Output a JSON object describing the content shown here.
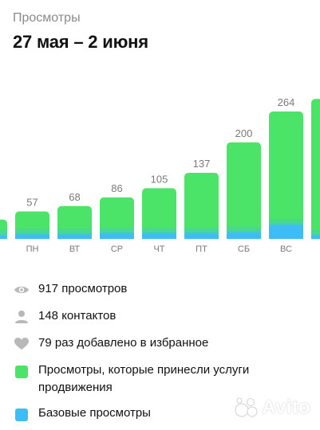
{
  "header": {
    "subtitle": "Просмотры",
    "title": "27 мая – 2 июня"
  },
  "colors": {
    "promoted": "#4be468",
    "base": "#3ebcf7",
    "axis_text": "#7a7a7a"
  },
  "chart_data": {
    "type": "bar",
    "stacked": true,
    "categories": [
      "",
      "ПН",
      "ВТ",
      "СР",
      "ЧТ",
      "ПТ",
      "СБ",
      "ВС",
      ""
    ],
    "totals": [
      null,
      57,
      68,
      86,
      105,
      137,
      200,
      264,
      null
    ],
    "series": [
      {
        "name": "Просмотры, которые принесли услуги продвижения",
        "values": [
          null,
          52,
          63,
          80,
          99,
          131,
          193,
          250,
          null
        ]
      },
      {
        "name": "Базовые просмотры",
        "values": [
          null,
          5,
          5,
          6,
          6,
          6,
          7,
          14,
          null
        ]
      }
    ],
    "ylim": [
      0,
      280
    ]
  },
  "stats": {
    "views": "917 просмотров",
    "contacts": "148 контактов",
    "favorites": "79 раз добавлено в избранное"
  },
  "legend": {
    "promoted": "Просмотры, которые принесли услуги продвижения",
    "base": "Базовые просмотры"
  },
  "icons": {
    "views": "eye-icon",
    "contacts": "person-icon",
    "favorites": "heart-icon"
  },
  "watermark": {
    "text": "Avito"
  }
}
